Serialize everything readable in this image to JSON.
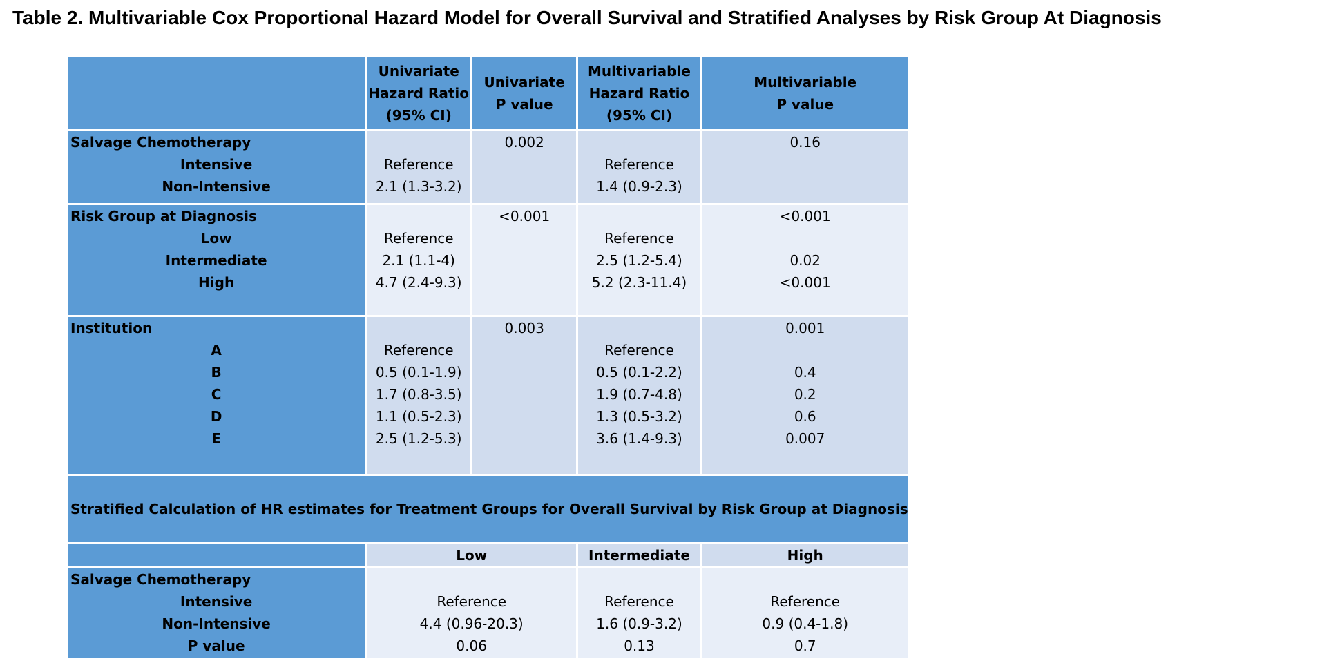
{
  "title": "Table 2. Multivariable Cox Proportional Hazard Model for Overall Survival and Stratified Analyses by Risk Group At Diagnosis",
  "header": {
    "uni_hr": [
      "Univariate",
      "Hazard Ratio",
      "(95% CI)"
    ],
    "uni_p": [
      "Univariate",
      "P value"
    ],
    "multi_hr": [
      "Multivariable",
      "Hazard Ratio",
      "(95% CI)"
    ],
    "multi_p": [
      "Multivariable",
      "P value"
    ]
  },
  "sections": [
    {
      "label": "Salvage Chemotherapy",
      "uni_p": "0.002",
      "multi_p": "0.16",
      "rows": [
        {
          "label": "Intensive",
          "uni_hr": "Reference",
          "multi_hr": "Reference",
          "multi_p": ""
        },
        {
          "label": "Non-Intensive",
          "uni_hr": "2.1 (1.3-3.2)",
          "multi_hr": "1.4 (0.9-2.3)",
          "multi_p": ""
        }
      ]
    },
    {
      "label": "Risk Group at Diagnosis",
      "uni_p": "<0.001",
      "multi_p": "<0.001",
      "rows": [
        {
          "label": "Low",
          "uni_hr": "Reference",
          "multi_hr": "Reference",
          "multi_p": ""
        },
        {
          "label": "Intermediate",
          "uni_hr": "2.1 (1.1-4)",
          "multi_hr": "2.5 (1.2-5.4)",
          "multi_p": "0.02"
        },
        {
          "label": "High",
          "uni_hr": "4.7 (2.4-9.3)",
          "multi_hr": "5.2 (2.3-11.4)",
          "multi_p": "<0.001"
        }
      ]
    },
    {
      "label": "Institution",
      "uni_p": "0.003",
      "multi_p": "0.001",
      "rows": [
        {
          "label": "A",
          "uni_hr": "Reference",
          "multi_hr": "Reference",
          "multi_p": ""
        },
        {
          "label": "B",
          "uni_hr": "0.5 (0.1-1.9)",
          "multi_hr": "0.5 (0.1-2.2)",
          "multi_p": "0.4"
        },
        {
          "label": "C",
          "uni_hr": "1.7 (0.8-3.5)",
          "multi_hr": "1.9 (0.7-4.8)",
          "multi_p": "0.2"
        },
        {
          "label": "D",
          "uni_hr": "1.1 (0.5-2.3)",
          "multi_hr": "1.3 (0.5-3.2)",
          "multi_p": "0.6"
        },
        {
          "label": "E",
          "uni_hr": "2.5 (1.2-5.3)",
          "multi_hr": "3.6 (1.4-9.3)",
          "multi_p": "0.007"
        }
      ]
    }
  ],
  "stratified": {
    "title": "Stratified Calculation of HR estimates for Treatment Groups for Overall Survival by Risk Group at Diagnosis",
    "headers": [
      "Low",
      "Intermediate",
      "High"
    ],
    "label": "Salvage Chemotherapy",
    "rows": [
      {
        "label": "Intensive",
        "values": [
          "Reference",
          "Reference",
          "Reference"
        ]
      },
      {
        "label": "Non-Intensive",
        "values": [
          "4.4 (0.96-20.3)",
          "1.6 (0.9-3.2)",
          "0.9 (0.4-1.8)"
        ]
      },
      {
        "label": "P value",
        "values": [
          "0.06",
          "0.13",
          "0.7"
        ]
      }
    ]
  },
  "colors": {
    "header_blue": "#5b9bd5",
    "band_dark": "#d0dcee",
    "band_light": "#e8eef8",
    "grid": "#ffffff"
  }
}
